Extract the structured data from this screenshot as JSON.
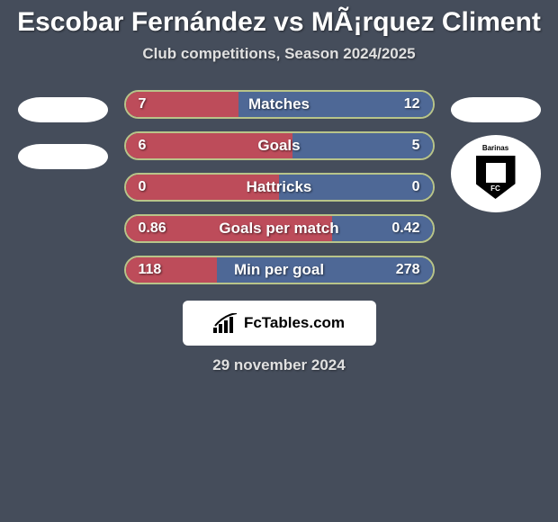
{
  "title": "Escobar Fernández vs MÃ¡rquez Climent",
  "subtitle": "Club competitions, Season 2024/2025",
  "date": "29 november 2024",
  "footer": {
    "brand_text": "FcTables.com",
    "icon_color": "#000000",
    "background_color": "#ffffff"
  },
  "team_a": {
    "badge_text": "",
    "color": "#ffffff"
  },
  "team_b": {
    "top_text": "Barinas",
    "shield_text": "FC",
    "shield_color": "#000000",
    "background_color": "#ffffff"
  },
  "chart": {
    "type": "horizontal-stacked-bar-comparison",
    "left_color": "#bd4c5a",
    "right_color": "#4e6896",
    "border_color": "#b8c489",
    "background_color": "#454d5b",
    "label_fontsize": 17,
    "value_fontsize": 16,
    "text_color": "#ffffff",
    "stats": [
      {
        "label": "Matches",
        "left_value": "7",
        "right_value": "12",
        "left_pct": 36.8
      },
      {
        "label": "Goals",
        "left_value": "6",
        "right_value": "5",
        "left_pct": 54.5
      },
      {
        "label": "Hattricks",
        "left_value": "0",
        "right_value": "0",
        "left_pct": 50.0
      },
      {
        "label": "Goals per match",
        "left_value": "0.86",
        "right_value": "0.42",
        "left_pct": 67.2
      },
      {
        "label": "Min per goal",
        "left_value": "118",
        "right_value": "278",
        "left_pct": 29.8
      }
    ]
  },
  "styling": {
    "title_fontsize": 30,
    "title_color": "#ffffff",
    "subtitle_fontsize": 17,
    "subtitle_color": "#e0e0e0",
    "date_fontsize": 17,
    "date_color": "#e0e0e0",
    "container_width": 620,
    "container_height": 580
  }
}
